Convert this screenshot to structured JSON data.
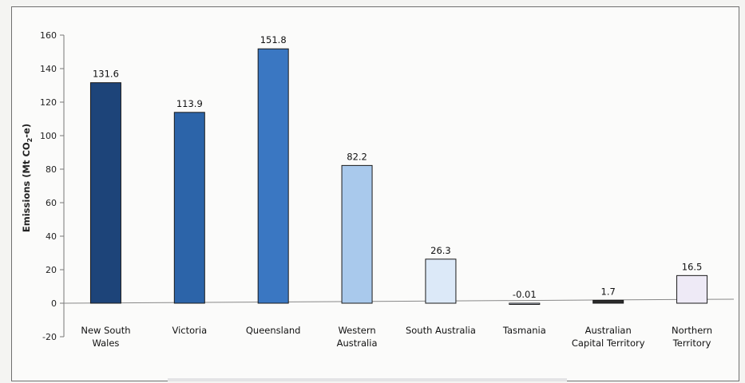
{
  "chart_data": {
    "type": "bar",
    "title": "",
    "xlabel": "",
    "ylabel": "Emissions (Mt CO2-e)",
    "ylabel_parts": {
      "pre": "Emissions (Mt CO",
      "sub": "2",
      "post": "-e)"
    },
    "ylim": [
      -20,
      160
    ],
    "yticks": [
      160,
      140,
      120,
      100,
      80,
      60,
      40,
      20,
      0,
      -20
    ],
    "grid": false,
    "legend": "none",
    "categories": [
      [
        "New South",
        "Wales"
      ],
      [
        "Victoria"
      ],
      [
        "Queensland"
      ],
      [
        "Western",
        "Australia"
      ],
      [
        "South Australia"
      ],
      [
        "Tasmania"
      ],
      [
        "Australian",
        "Capital Territory"
      ],
      [
        "Northern",
        "Territory"
      ]
    ],
    "values": [
      131.6,
      113.9,
      151.8,
      82.2,
      26.3,
      -0.01,
      1.7,
      16.5
    ],
    "value_labels": [
      "131.6",
      "113.9",
      "151.8",
      "82.2",
      "26.3",
      "-0.01",
      "1.7",
      "16.5"
    ],
    "colors": [
      "#1d4479",
      "#2c64a9",
      "#3a77c2",
      "#a9c9ec",
      "#dce9f8",
      "#d6e2f1",
      "#2b2b2b",
      "#eeeaf6"
    ]
  }
}
